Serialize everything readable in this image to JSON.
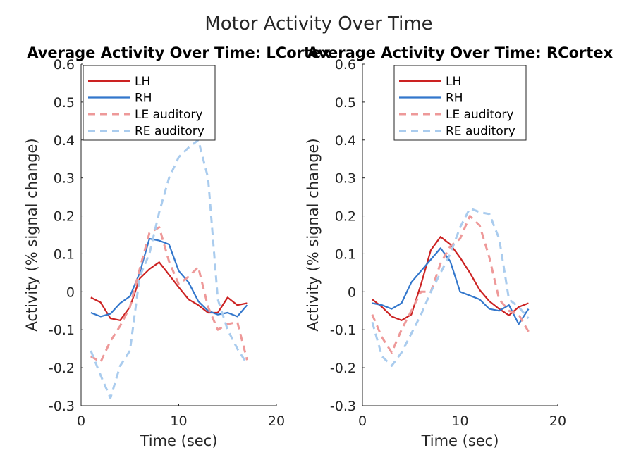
{
  "figure": {
    "suptitle": "Motor Activity Over Time"
  },
  "colors": {
    "lh": "#cc2222",
    "rh": "#3377cc",
    "le_aud": "#ee9999",
    "re_aud": "#aaccee",
    "axis": "#262626"
  },
  "chart_data": [
    {
      "type": "line",
      "title": "Average Activity Over Time: LCortex",
      "xlabel": "Time (sec)",
      "ylabel": "Activity (% signal change)",
      "xlim": [
        0,
        20
      ],
      "ylim": [
        -0.3,
        0.6
      ],
      "xticks": [
        "0",
        "10",
        "20"
      ],
      "yticks": [
        "-0.3",
        "-0.2",
        "-0.1",
        "0",
        "0.1",
        "0.2",
        "0.3",
        "0.4",
        "0.5",
        "0.6"
      ],
      "legend_position": "top-left",
      "x": [
        1,
        2,
        3,
        4,
        5,
        6,
        7,
        8,
        9,
        10,
        11,
        12,
        13,
        14,
        15,
        16,
        17
      ],
      "series": [
        {
          "name": "LH",
          "style": "solid",
          "color_key": "lh",
          "values": [
            -0.015,
            -0.028,
            -0.07,
            -0.075,
            -0.04,
            0.035,
            0.06,
            0.078,
            0.045,
            0.012,
            -0.02,
            -0.035,
            -0.055,
            -0.055,
            -0.015,
            -0.035,
            -0.03
          ]
        },
        {
          "name": "RH",
          "style": "solid",
          "color_key": "rh",
          "values": [
            -0.055,
            -0.065,
            -0.058,
            -0.03,
            -0.012,
            0.05,
            0.14,
            0.135,
            0.125,
            0.055,
            0.025,
            -0.025,
            -0.05,
            -0.06,
            -0.055,
            -0.065,
            -0.035
          ]
        },
        {
          "name": "LE auditory",
          "style": "dashed",
          "color_key": "le_aud",
          "values": [
            -0.17,
            -0.185,
            -0.13,
            -0.09,
            -0.04,
            0.06,
            0.155,
            0.17,
            0.08,
            0.02,
            0.04,
            0.065,
            -0.04,
            -0.1,
            -0.085,
            -0.08,
            -0.18
          ]
        },
        {
          "name": "RE auditory",
          "style": "dashed",
          "color_key": "re_aud",
          "values": [
            -0.155,
            -0.22,
            -0.28,
            -0.195,
            -0.155,
            0.04,
            0.1,
            0.21,
            0.3,
            0.355,
            0.38,
            0.4,
            0.3,
            -0.02,
            -0.1,
            -0.15,
            -0.19
          ]
        }
      ]
    },
    {
      "type": "line",
      "title": "Average Activity Over Time: RCortex",
      "xlabel": "Time (sec)",
      "ylabel": "Activity (% signal change)",
      "xlim": [
        0,
        20
      ],
      "ylim": [
        -0.3,
        0.6
      ],
      "xticks": [
        "0",
        "10",
        "20"
      ],
      "yticks": [
        "-0.3",
        "-0.2",
        "-0.1",
        "0",
        "0.1",
        "0.2",
        "0.3",
        "0.4",
        "0.5",
        "0.6"
      ],
      "legend_position": "top-center",
      "x": [
        1,
        2,
        3,
        4,
        5,
        6,
        7,
        8,
        9,
        10,
        11,
        12,
        13,
        14,
        15,
        16,
        17
      ],
      "series": [
        {
          "name": "LH",
          "style": "solid",
          "color_key": "lh",
          "values": [
            -0.02,
            -0.04,
            -0.065,
            -0.075,
            -0.06,
            0.02,
            0.11,
            0.145,
            0.125,
            0.09,
            0.05,
            0.005,
            -0.025,
            -0.045,
            -0.062,
            -0.04,
            -0.03
          ]
        },
        {
          "name": "RH",
          "style": "solid",
          "color_key": "rh",
          "values": [
            -0.03,
            -0.035,
            -0.045,
            -0.03,
            0.025,
            0.055,
            0.085,
            0.115,
            0.08,
            0.0,
            -0.01,
            -0.02,
            -0.045,
            -0.05,
            -0.035,
            -0.085,
            -0.045
          ]
        },
        {
          "name": "LE auditory",
          "style": "dashed",
          "color_key": "le_aud",
          "values": [
            -0.06,
            -0.12,
            -0.16,
            -0.1,
            -0.05,
            0.0,
            0.0,
            0.075,
            0.12,
            0.14,
            0.2,
            0.175,
            0.09,
            -0.02,
            -0.05,
            -0.06,
            -0.105
          ]
        },
        {
          "name": "RE auditory",
          "style": "dashed",
          "color_key": "re_aud",
          "values": [
            -0.08,
            -0.17,
            -0.195,
            -0.16,
            -0.11,
            -0.06,
            0.0,
            0.05,
            0.1,
            0.17,
            0.22,
            0.21,
            0.205,
            0.14,
            -0.02,
            -0.04,
            -0.07
          ]
        }
      ]
    }
  ]
}
